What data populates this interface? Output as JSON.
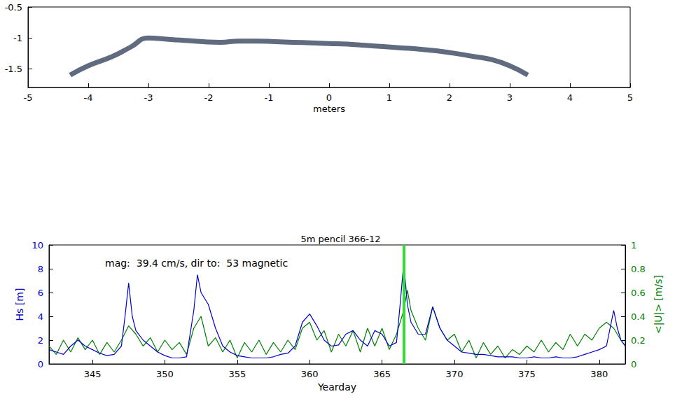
{
  "chart_data": [
    {
      "type": "line",
      "xlabel": "meters",
      "xlim": [
        -5,
        5
      ],
      "xticks": [
        -5,
        -4,
        -3,
        -2,
        -1,
        0,
        1,
        2,
        3,
        4,
        5
      ],
      "ylim": [
        -1.8,
        -0.5
      ],
      "yticks": [
        -1.5,
        -1,
        -0.5
      ],
      "grid": false,
      "series": [
        {
          "color": "#2b3a55",
          "x": [
            -4.3,
            -4.0,
            -3.6,
            -3.3,
            -3.0,
            -2.7,
            -2.4,
            -2.1,
            -1.8,
            -1.5,
            -1.2,
            -0.9,
            -0.6,
            -0.3,
            0,
            0.3,
            0.6,
            0.9,
            1.2,
            1.5,
            1.8,
            2.1,
            2.4,
            2.7,
            3.0,
            3.3
          ],
          "values": [
            -1.6,
            -1.45,
            -1.3,
            -1.15,
            -1.0,
            -1.02,
            -1.04,
            -1.06,
            -1.07,
            -1.05,
            -1.05,
            -1.06,
            -1.07,
            -1.08,
            -1.09,
            -1.1,
            -1.12,
            -1.14,
            -1.16,
            -1.18,
            -1.21,
            -1.25,
            -1.3,
            -1.35,
            -1.45,
            -1.6
          ]
        }
      ]
    },
    {
      "type": "line",
      "title": "5m pencil 366-12",
      "annotation": "mag:  39.4 cm/s, dir to:  53 magnetic",
      "xlabel": "Yearday",
      "ylabel": "Hs [m]",
      "y2label": "<|U|> [m/s]",
      "xlim": [
        342,
        381.8
      ],
      "xticks": [
        345,
        350,
        355,
        360,
        365,
        370,
        375,
        380
      ],
      "ylim": [
        0,
        10
      ],
      "yticks": [
        0,
        2,
        4,
        6,
        8,
        10
      ],
      "y2lim": [
        0,
        1
      ],
      "y2ticks": [
        0,
        0.2,
        0.4,
        0.6,
        0.8,
        1
      ],
      "grid": false,
      "vline": {
        "x": 366.5,
        "color": "#33dd33"
      },
      "series": [
        {
          "color": "#0000cc",
          "x": [
            342,
            342.5,
            343,
            343.5,
            344,
            344.5,
            345,
            345.5,
            346,
            346.5,
            347,
            347.25,
            347.5,
            347.75,
            348,
            348.5,
            349,
            349.5,
            350,
            350.5,
            351,
            351.5,
            352,
            352.25,
            352.5,
            353,
            353.5,
            354,
            354.5,
            355,
            355.5,
            356,
            356.5,
            357,
            357.5,
            358,
            358.5,
            359,
            359.5,
            360,
            360.5,
            361,
            361.5,
            362,
            362.5,
            363,
            363.5,
            364,
            364.5,
            365,
            365.5,
            366,
            366.25,
            366.5,
            366.75,
            367,
            367.5,
            368,
            368.5,
            369,
            369.5,
            370,
            370.5,
            371,
            371.5,
            372,
            372.5,
            373,
            373.5,
            374,
            374.5,
            375,
            375.5,
            376,
            376.5,
            377,
            377.5,
            378,
            378.5,
            379,
            379.5,
            380,
            380.5,
            381,
            381.25,
            381.5,
            381.8
          ],
          "values": [
            1.2,
            1.0,
            0.8,
            1.5,
            2.0,
            1.5,
            1.2,
            0.9,
            0.7,
            0.8,
            1.5,
            4.0,
            6.8,
            4.0,
            2.8,
            2.0,
            1.5,
            1.0,
            0.7,
            0.5,
            0.5,
            0.6,
            4.5,
            7.5,
            6.0,
            5.0,
            3.0,
            1.5,
            1.0,
            0.7,
            0.6,
            0.5,
            0.5,
            0.5,
            0.6,
            0.8,
            0.9,
            1.5,
            3.5,
            4.2,
            3.2,
            2.0,
            1.5,
            1.6,
            2.5,
            2.8,
            2.0,
            1.5,
            2.8,
            2.5,
            1.5,
            1.8,
            5.0,
            8.5,
            5.0,
            3.5,
            2.5,
            2.5,
            4.8,
            3.0,
            2.0,
            1.5,
            1.0,
            0.9,
            0.8,
            0.8,
            0.7,
            0.6,
            0.6,
            0.6,
            0.5,
            0.5,
            0.6,
            0.5,
            0.5,
            0.6,
            0.5,
            0.5,
            0.6,
            0.8,
            1.0,
            1.2,
            1.5,
            4.5,
            3.0,
            2.0,
            1.5
          ]
        },
        {
          "color": "#008000",
          "axis": "y2",
          "x": [
            342,
            342.5,
            343,
            343.5,
            344,
            344.5,
            345,
            345.5,
            346,
            346.5,
            347,
            347.5,
            348,
            348.5,
            349,
            349.5,
            350,
            350.5,
            351,
            351.5,
            352,
            352.5,
            353,
            353.5,
            354,
            354.5,
            355,
            355.5,
            356,
            356.5,
            357,
            357.5,
            358,
            358.5,
            359,
            359.5,
            360,
            360.5,
            361,
            361.5,
            362,
            362.5,
            363,
            363.5,
            364,
            364.5,
            365,
            365.5,
            366,
            366.5,
            366.75,
            367,
            367.5,
            368,
            368.5,
            369,
            369.5,
            370,
            370.5,
            371,
            371.5,
            372,
            372.5,
            373,
            373.5,
            374,
            374.5,
            375,
            375.5,
            376,
            376.5,
            377,
            377.5,
            378,
            378.5,
            379,
            379.5,
            380,
            380.5,
            381,
            381.5,
            381.8
          ],
          "values": [
            0.15,
            0.08,
            0.2,
            0.1,
            0.22,
            0.12,
            0.2,
            0.08,
            0.18,
            0.1,
            0.2,
            0.32,
            0.25,
            0.15,
            0.22,
            0.1,
            0.2,
            0.12,
            0.18,
            0.08,
            0.3,
            0.4,
            0.15,
            0.22,
            0.1,
            0.2,
            0.05,
            0.18,
            0.1,
            0.2,
            0.08,
            0.18,
            0.1,
            0.2,
            0.12,
            0.3,
            0.35,
            0.2,
            0.28,
            0.1,
            0.25,
            0.15,
            0.28,
            0.1,
            0.3,
            0.15,
            0.3,
            0.12,
            0.25,
            0.45,
            0.62,
            0.45,
            0.3,
            0.2,
            0.48,
            0.3,
            0.2,
            0.25,
            0.1,
            0.2,
            0.05,
            0.18,
            0.08,
            0.15,
            0.05,
            0.12,
            0.08,
            0.15,
            0.1,
            0.2,
            0.1,
            0.18,
            0.12,
            0.25,
            0.15,
            0.25,
            0.2,
            0.3,
            0.35,
            0.3,
            0.2,
            0.15
          ]
        }
      ]
    }
  ]
}
